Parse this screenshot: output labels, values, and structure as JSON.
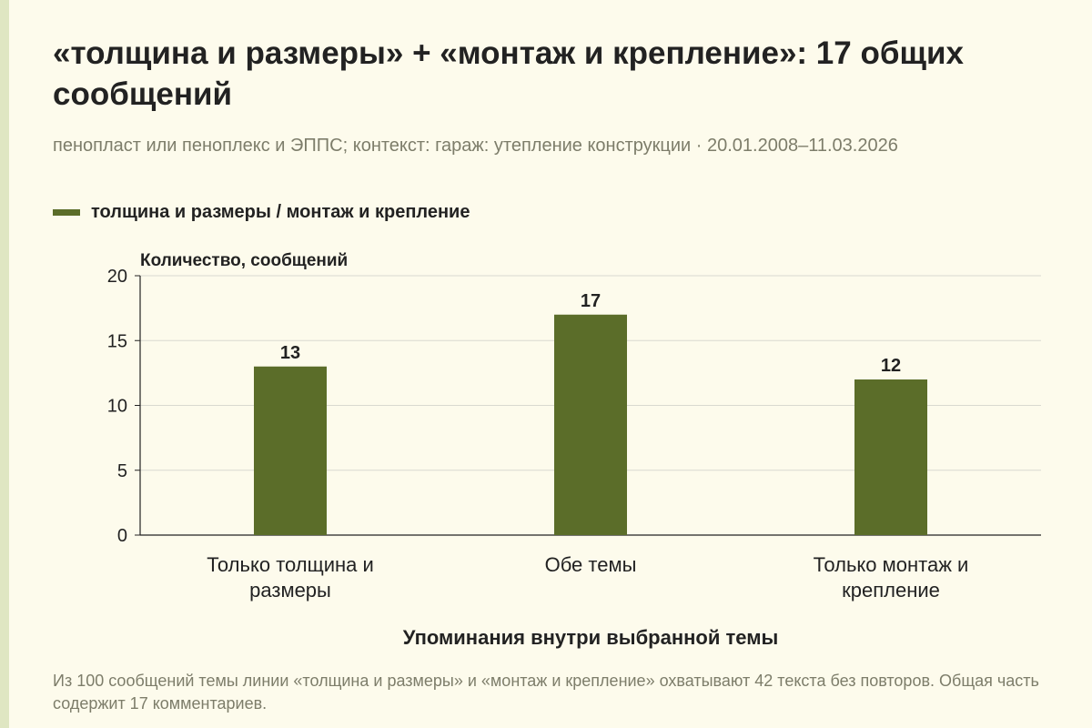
{
  "header": {
    "title": "«толщина и размеры» + «монтаж и крепление»: 17 общих сообщений",
    "subtitle": "пенопласт или пеноплекс и ЭППС; контекст: гараж: утепление конструкции · 20.01.2008–11.03.2026"
  },
  "legend": {
    "label": "толщина и размеры / монтаж и крепление"
  },
  "footnote": "Из 100 сообщений темы линии «толщина и размеры» и «монтаж и крепление» охватывают 42 текста без повторов. Общая часть содержит 17 комментариев.",
  "colors": {
    "bar": "#5b6d29",
    "grid": "#d9d9d0",
    "axis": "#222222",
    "background": "#fdfbec",
    "stripe": "#dfe6c2"
  },
  "chart_data": {
    "type": "bar",
    "title": "«толщина и размеры» + «монтаж и крепление»: 17 общих сообщений",
    "ylabel": "Количество, сообщений",
    "xlabel": "Упоминания внутри выбранной темы",
    "ylim": [
      0,
      20
    ],
    "yticks": [
      0,
      5,
      10,
      15,
      20
    ],
    "grid": true,
    "legend_position": "top-left",
    "categories": [
      [
        "Только толщина и",
        "размеры"
      ],
      [
        "Обе темы"
      ],
      [
        "Только монтаж и",
        "крепление"
      ]
    ],
    "series": [
      {
        "name": "толщина и размеры / монтаж и крепление",
        "values": [
          13,
          17,
          12
        ]
      }
    ]
  }
}
